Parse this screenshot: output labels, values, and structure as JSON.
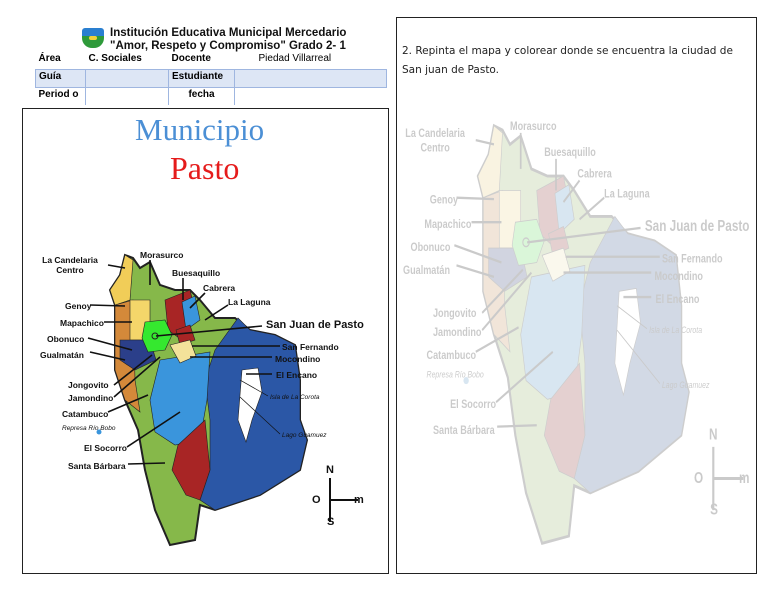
{
  "header": {
    "school": "Institución Educativa Municipal Mercedario",
    "motto": "\"Amor, Respeto y Compromiso\" Grado 2- 1",
    "area_label": "Área",
    "area_value": "C. Sociales",
    "teacher_label": "Docente",
    "teacher_value": "Piedad Villarreal",
    "guide_label": "Guía",
    "guide_value": "",
    "student_label": "Estudiante",
    "student_value": "",
    "period_label": "Period o",
    "period_value": "",
    "date_label": "fecha",
    "date_value": ""
  },
  "left_panel": {
    "title_line1": "Municipio",
    "title_line2": "Pasto",
    "title_colors": [
      "#4b8fd5",
      "#e51b1b"
    ]
  },
  "right_panel": {
    "instruction": "2. Repinta el mapa y colorear donde se encuentra la ciudad de San juan de Pasto."
  },
  "map": {
    "labels": {
      "candelaria": "La Candelaria Centro",
      "morasurco": "Morasurco",
      "buesaquillo": "Buesaquillo",
      "cabrera": "Cabrera",
      "laguna": "La Laguna",
      "sanjuan": "San Juan de Pasto",
      "genoy": "Genoy",
      "mapachico": "Mapachico",
      "obonuco": "Obonuco",
      "gualmatan": "Gualmatán",
      "sanfernando": "San Fernando",
      "mocondino": "Mocondino",
      "encano": "El Encano",
      "corota": "Isla de La Corota",
      "guamuez": "Lago Guamuez",
      "jongovito": "Jongovito",
      "jamondino": "Jamondino",
      "catambuco": "Catambuco",
      "bobo": "Represa Río Bobo",
      "socorro": "El Socorro",
      "barbara": "Santa Bárbara"
    },
    "compass": {
      "n": "N",
      "s": "S",
      "o": "O",
      "e": "m"
    }
  }
}
